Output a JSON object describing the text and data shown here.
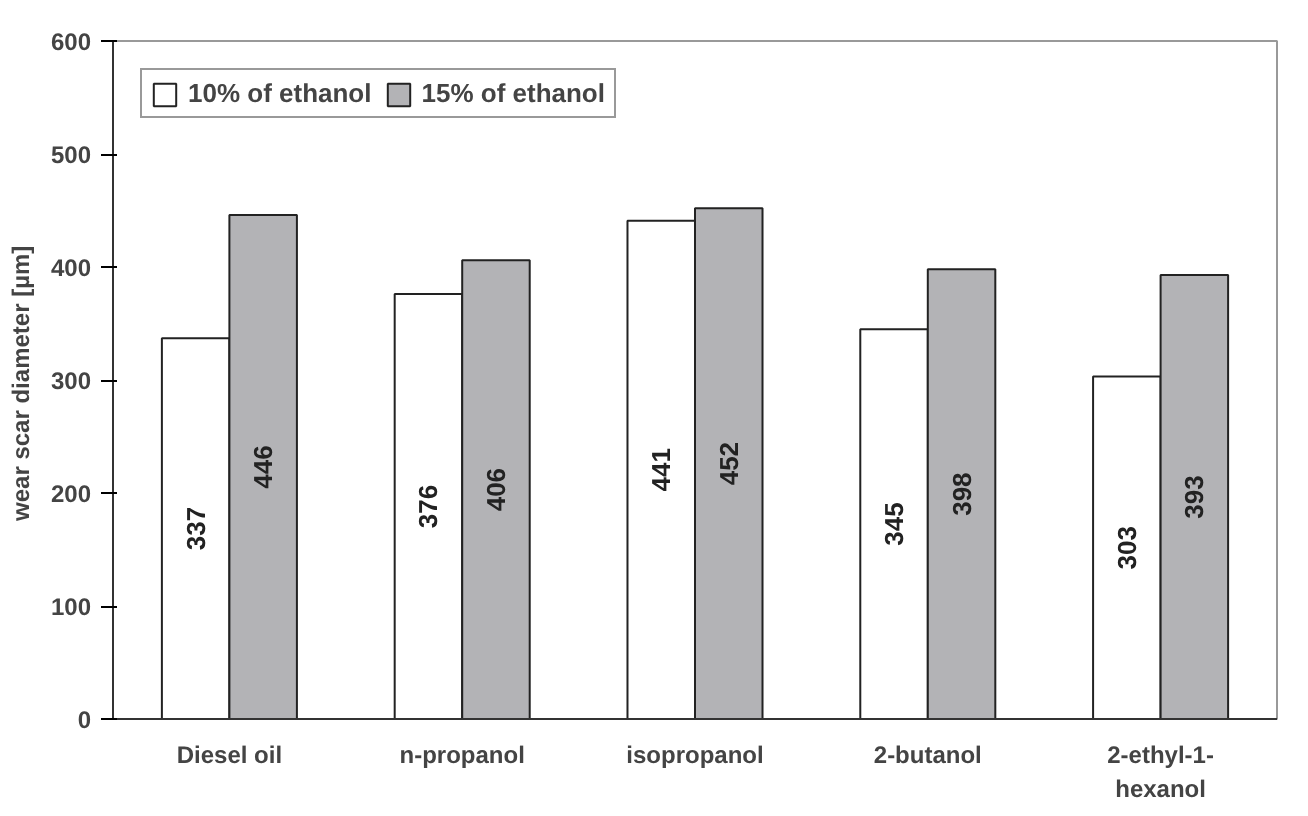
{
  "chart_data": {
    "type": "bar",
    "ylabel": "wear scar diameter  [µm]",
    "categories": [
      "Diesel oil",
      "n-propanol",
      "isopropanol",
      "2-butanol",
      "2-ethyl-1-\nhexanol"
    ],
    "series": [
      {
        "name": "10% of ethanol",
        "color": "#ffffff",
        "values": [
          337,
          376,
          441,
          345,
          303
        ]
      },
      {
        "name": "15% of ethanol",
        "color": "#b3b3b6",
        "values": [
          446,
          406,
          452,
          398,
          393
        ]
      }
    ],
    "ylim": [
      0,
      600
    ],
    "yticks": [
      0,
      100,
      200,
      300,
      400,
      500,
      600
    ],
    "grid": false,
    "legend": "top left",
    "data_labels": true
  }
}
